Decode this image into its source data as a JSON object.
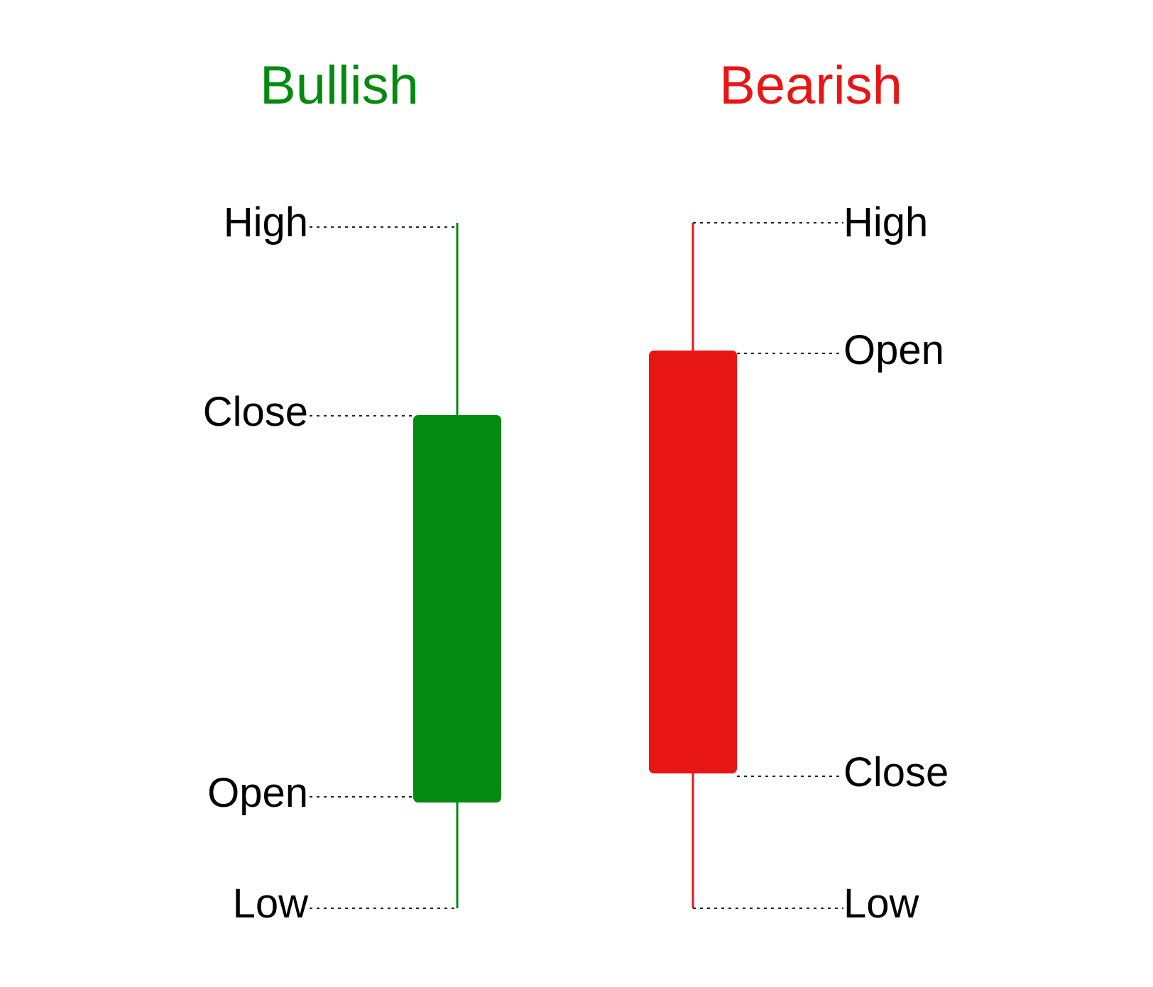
{
  "colors": {
    "bullish": "#038a10",
    "bearish": "#e81515",
    "label": "#000000",
    "leader": "#222222",
    "background": "#ffffff"
  },
  "bullish": {
    "title": "Bullish",
    "labels": {
      "high": "High",
      "close": "Close",
      "open": "Open",
      "low": "Low"
    }
  },
  "bearish": {
    "title": "Bearish",
    "labels": {
      "high": "High",
      "open": "Open",
      "close": "Close",
      "low": "Low"
    }
  }
}
